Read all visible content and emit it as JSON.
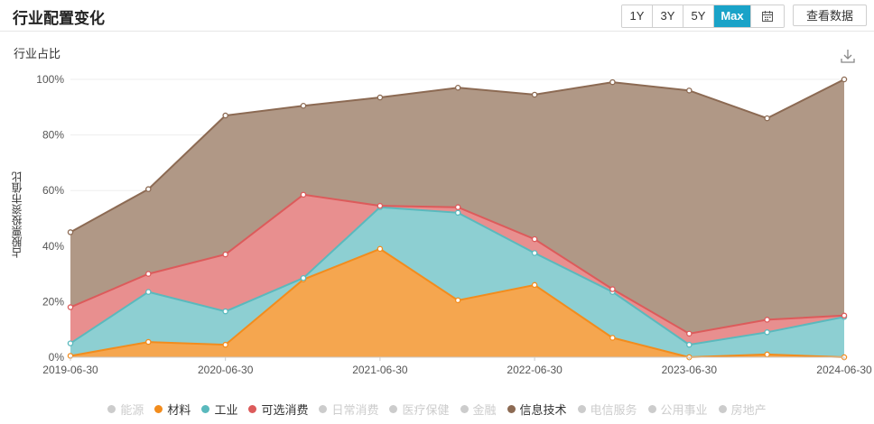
{
  "header": {
    "title": "行业配置变化",
    "ranges": [
      "1Y",
      "3Y",
      "5Y",
      "Max"
    ],
    "active_range": "Max",
    "calendar_icon": "calendar-icon",
    "view_data_label": "查看数据"
  },
  "chart_title": "行业占比",
  "download_icon": "download-icon",
  "chart_data": {
    "type": "area",
    "stacked": true,
    "ylabel": "占股票投资市值比",
    "yticks": [
      "0%",
      "20%",
      "40%",
      "60%",
      "80%",
      "100%"
    ],
    "ylim": [
      0,
      100
    ],
    "xtick_labels": [
      "2019-06-30",
      "2020-06-30",
      "2021-06-30",
      "2022-06-30",
      "2023-06-30",
      "2024-06-30"
    ],
    "x": [
      "2019-06-30",
      "2019-12-31",
      "2020-06-30",
      "2020-12-31",
      "2021-06-30",
      "2021-12-31",
      "2022-06-30",
      "2022-12-31",
      "2023-06-30",
      "2023-12-31",
      "2024-06-30"
    ],
    "grid": true,
    "legend_position": "bottom",
    "series": [
      {
        "name": "材料",
        "color": "#f5a64f",
        "values": [
          0.5,
          5.5,
          4.5,
          28,
          39,
          20.5,
          26,
          7,
          0,
          1,
          0
        ]
      },
      {
        "name": "工业",
        "color": "#8dcfd2",
        "values": [
          4.5,
          18,
          12,
          0.5,
          15,
          31.5,
          11.5,
          16.5,
          4.5,
          8,
          14.5
        ]
      },
      {
        "name": "可选消费",
        "color": "#e88f8f",
        "values": [
          13,
          6.5,
          20.5,
          30,
          0.5,
          2,
          5,
          1,
          4,
          4.5,
          0.5
        ]
      },
      {
        "name": "信息技术",
        "color": "#b09886",
        "values": [
          27,
          30.5,
          50,
          32,
          39,
          43,
          52,
          74.5,
          87.5,
          72.5,
          85
        ]
      }
    ],
    "legend": [
      {
        "name": "能源",
        "active": false,
        "color": "#cccccc"
      },
      {
        "name": "材料",
        "active": true,
        "color": "#f28c1d"
      },
      {
        "name": "工业",
        "active": true,
        "color": "#5ab9bd"
      },
      {
        "name": "可选消费",
        "active": true,
        "color": "#dc5b5b"
      },
      {
        "name": "日常消费",
        "active": false,
        "color": "#cccccc"
      },
      {
        "name": "医疗保健",
        "active": false,
        "color": "#cccccc"
      },
      {
        "name": "金融",
        "active": false,
        "color": "#cccccc"
      },
      {
        "name": "信息技术",
        "active": true,
        "color": "#8c6a53"
      },
      {
        "name": "电信服务",
        "active": false,
        "color": "#cccccc"
      },
      {
        "name": "公用事业",
        "active": false,
        "color": "#cccccc"
      },
      {
        "name": "房地产",
        "active": false,
        "color": "#cccccc"
      }
    ]
  }
}
